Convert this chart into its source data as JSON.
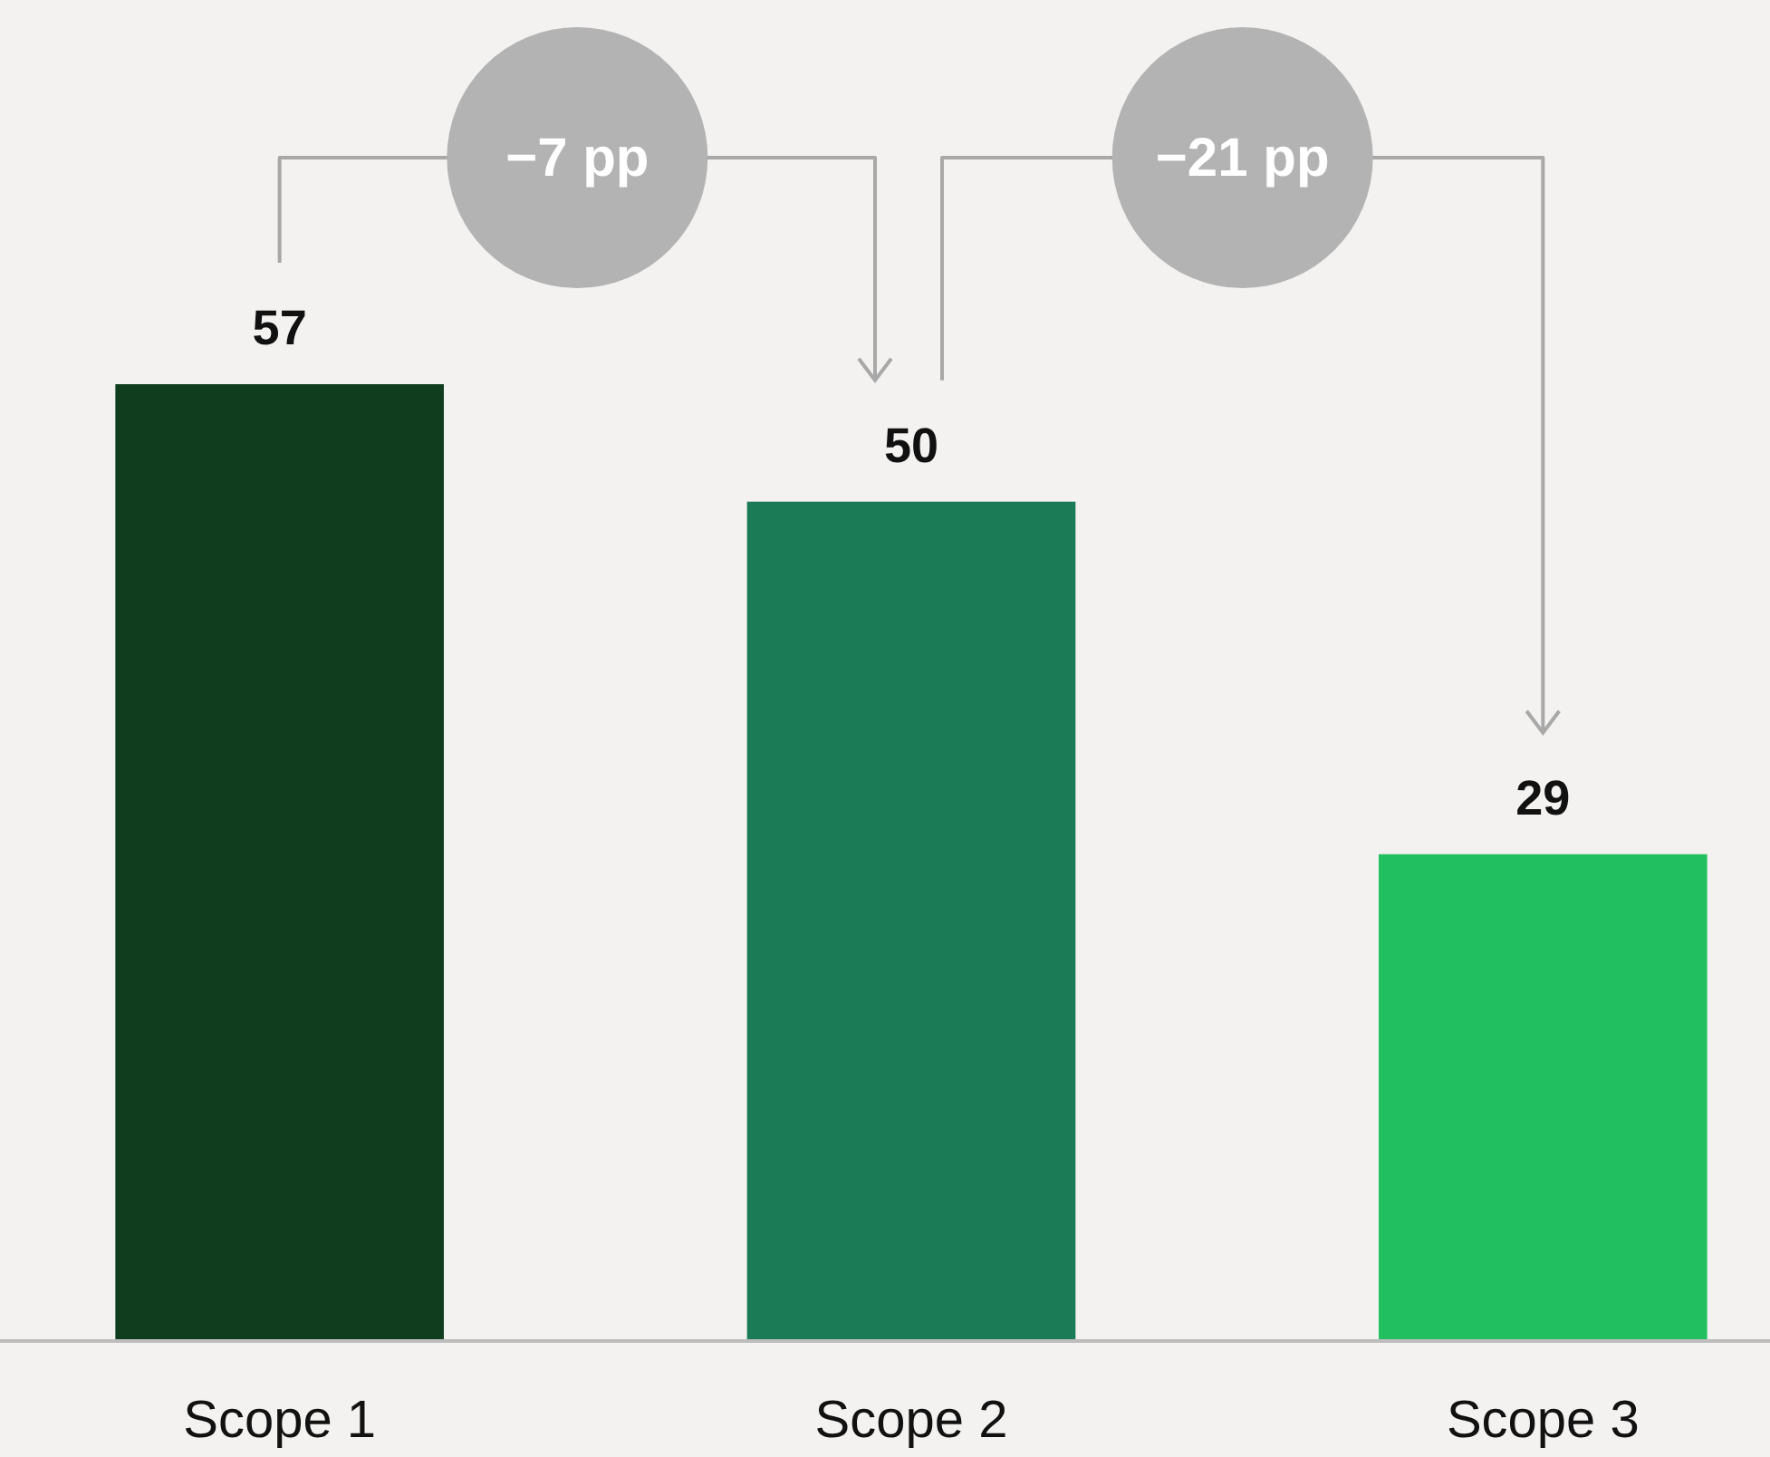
{
  "chart_data": {
    "type": "bar",
    "categories": [
      "Scope 1",
      "Scope 2",
      "Scope 3"
    ],
    "values": [
      57,
      50,
      29
    ],
    "colors": [
      "#0f3d1e",
      "#1b7b56",
      "#22bf61"
    ],
    "data_labels": true,
    "annotations": [
      "−7 pp",
      "−21 pp"
    ]
  }
}
